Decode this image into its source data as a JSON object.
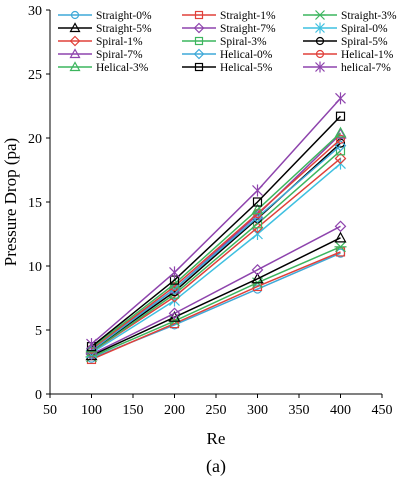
{
  "chart_data": {
    "type": "line",
    "caption": "(a)",
    "xlabel": "Re",
    "ylabel": "Pressure Drop (pa)",
    "xlim": [
      50,
      450
    ],
    "ylim": [
      0,
      30
    ],
    "x_ticks": [
      "50",
      "100",
      "150",
      "200",
      "250",
      "300",
      "350",
      "400",
      "450"
    ],
    "y_ticks": [
      "0",
      "5",
      "10",
      "15",
      "20",
      "25",
      "30"
    ],
    "grid": false,
    "legend_position": "top",
    "x": [
      100,
      200,
      300,
      400
    ],
    "series": [
      {
        "name": "Straight-0%",
        "color": "#3fa9d8",
        "marker": "circle",
        "values": [
          2.8,
          5.4,
          8.2,
          11.0
        ]
      },
      {
        "name": "Straight-1%",
        "color": "#e0403a",
        "marker": "square",
        "values": [
          2.7,
          5.5,
          8.4,
          11.1
        ]
      },
      {
        "name": "Straight-3%",
        "color": "#3cb55e",
        "marker": "star",
        "values": [
          2.9,
          5.7,
          8.7,
          11.5
        ]
      },
      {
        "name": "Straight-5%",
        "color": "#000000",
        "marker": "triangle",
        "values": [
          3.0,
          6.0,
          9.0,
          12.2
        ]
      },
      {
        "name": "Straight-7%",
        "color": "#8e44ad",
        "marker": "diamond",
        "values": [
          3.1,
          6.3,
          9.7,
          13.1
        ]
      },
      {
        "name": "Spiral-0%",
        "color": "#3fc0e0",
        "marker": "asterisk",
        "values": [
          3.2,
          7.3,
          12.5,
          18.0
        ]
      },
      {
        "name": "Spiral-1%",
        "color": "#e0403a",
        "marker": "diamond",
        "values": [
          3.3,
          7.6,
          13.0,
          18.4
        ]
      },
      {
        "name": "Spiral-3%",
        "color": "#3cb55e",
        "marker": "square",
        "values": [
          3.3,
          7.8,
          13.3,
          19.0
        ]
      },
      {
        "name": "Spiral-5%",
        "color": "#000000",
        "marker": "circle",
        "values": [
          3.4,
          8.0,
          13.7,
          19.6
        ]
      },
      {
        "name": "Spiral-7%",
        "color": "#8e44ad",
        "marker": "triangle",
        "values": [
          3.5,
          8.2,
          14.0,
          20.3
        ]
      },
      {
        "name": "Helical-0%",
        "color": "#3fa9d8",
        "marker": "diamond",
        "values": [
          3.4,
          8.2,
          13.8,
          19.4
        ]
      },
      {
        "name": "Helical-1%",
        "color": "#e0403a",
        "marker": "circle",
        "values": [
          3.5,
          8.4,
          14.1,
          19.9
        ]
      },
      {
        "name": "Helical-3%",
        "color": "#3cb55e",
        "marker": "triangle",
        "values": [
          3.6,
          8.6,
          14.4,
          20.4
        ]
      },
      {
        "name": "Helical-5%",
        "color": "#000000",
        "marker": "square",
        "values": [
          3.7,
          8.9,
          15.0,
          21.7
        ]
      },
      {
        "name": "helical-7%",
        "color": "#8e44ad",
        "marker": "asterisk",
        "values": [
          3.9,
          9.5,
          15.9,
          23.1
        ]
      }
    ]
  }
}
